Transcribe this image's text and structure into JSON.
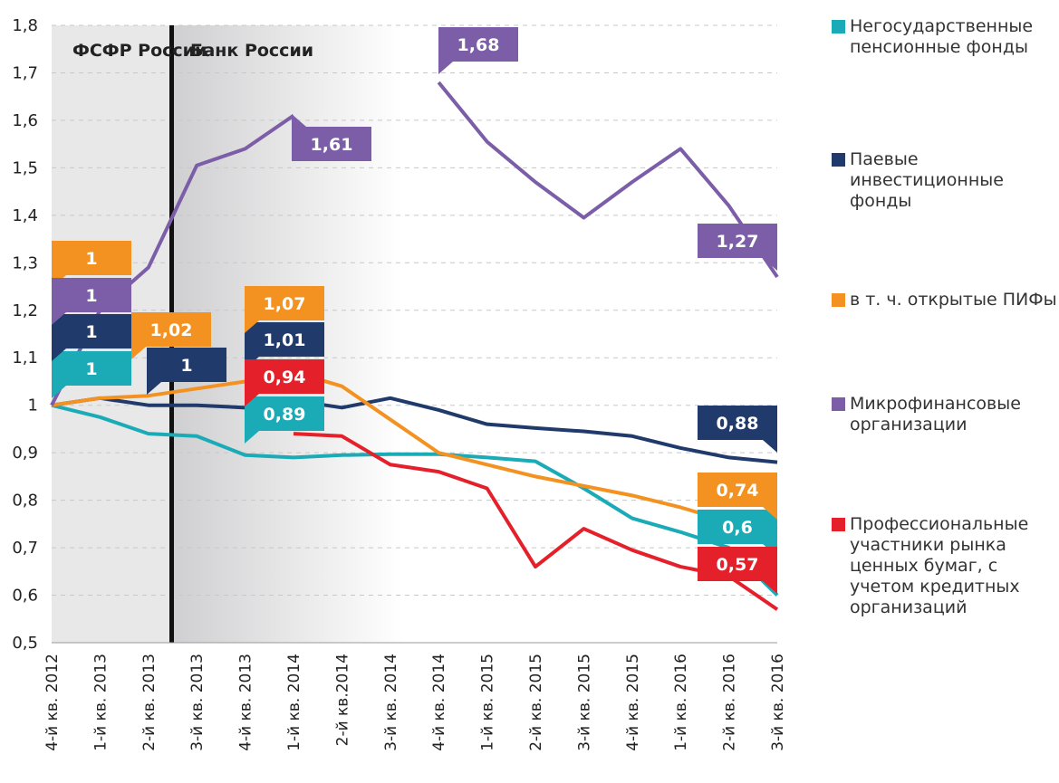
{
  "chart_data": {
    "type": "line",
    "annotations": [
      "ФСФР России",
      "Банк России"
    ],
    "categories": [
      "4-й кв. 2012",
      "1-й кв. 2013",
      "2-й кв. 2013",
      "3-й кв. 2013",
      "4-й кв. 2013",
      "1-й кв. 2014",
      "2-й кв.2014",
      "3-й кв. 2014",
      "4-й кв. 2014",
      "1-й кв. 2015",
      "2-й кв. 2015",
      "3-й кв. 2015",
      "4-й кв. 2015",
      "1-й кв. 2016",
      "2-й кв. 2016",
      "3-й кв. 2016"
    ],
    "series": [
      {
        "name": "Негосударственные пенсионные фонды",
        "color": "#1aabb7",
        "values": [
          1.0,
          0.975,
          0.94,
          0.935,
          0.895,
          0.89,
          0.895,
          0.897,
          0.897,
          0.89,
          0.882,
          0.825,
          0.762,
          0.733,
          0.7,
          0.6
        ],
        "value_labels": [
          "1",
          null,
          null,
          null,
          null,
          "0,89",
          null,
          null,
          null,
          null,
          null,
          null,
          null,
          null,
          null,
          "0,6"
        ]
      },
      {
        "name": "Паевые инвестиционные фонды",
        "color": "#1f3a6b",
        "values": [
          1.0,
          1.015,
          1.0,
          1.0,
          0.995,
          1.01,
          0.995,
          1.015,
          0.99,
          0.96,
          0.952,
          0.945,
          0.935,
          0.91,
          0.89,
          0.88
        ],
        "value_labels": [
          "1",
          null,
          "1",
          null,
          null,
          "1,01",
          null,
          null,
          null,
          null,
          null,
          null,
          null,
          null,
          null,
          "0,88"
        ]
      },
      {
        "name": "в т. ч. открытые ПИФы",
        "color": "#f39220",
        "values": [
          1.0,
          1.015,
          1.02,
          1.035,
          1.05,
          1.07,
          1.04,
          0.97,
          0.9,
          0.875,
          0.85,
          0.83,
          0.81,
          0.785,
          0.755,
          0.74
        ],
        "value_labels": [
          "1",
          null,
          "1,02",
          null,
          null,
          "1,07",
          null,
          null,
          null,
          null,
          null,
          null,
          null,
          null,
          null,
          "0,74"
        ]
      },
      {
        "name": "Микрофинансовые организации",
        "color": "#7b5ea7",
        "values": [
          1.0,
          1.2,
          1.29,
          1.505,
          1.54,
          1.61,
          null,
          null,
          1.68,
          1.555,
          1.47,
          1.395,
          1.47,
          1.54,
          1.42,
          1.27
        ],
        "value_labels": [
          "1",
          null,
          null,
          null,
          null,
          "1,61",
          null,
          null,
          "1,68",
          null,
          null,
          null,
          null,
          null,
          null,
          "1,27"
        ]
      },
      {
        "name": "Профессиональные участники рынка ценных бумаг, с учетом кредитных организаций",
        "color": "#e4202a",
        "values": [
          null,
          null,
          null,
          null,
          null,
          0.94,
          0.935,
          0.875,
          0.86,
          0.825,
          0.66,
          0.74,
          0.695,
          0.66,
          0.64,
          0.57
        ],
        "value_labels": [
          null,
          null,
          null,
          null,
          null,
          "0,94",
          null,
          null,
          null,
          null,
          null,
          null,
          null,
          null,
          null,
          "0,57"
        ]
      }
    ],
    "ylim": [
      0.5,
      1.8
    ],
    "yticks": [
      {
        "value": 0.5,
        "label": "0,5"
      },
      {
        "value": 0.6,
        "label": "0,6"
      },
      {
        "value": 0.7,
        "label": "0,7"
      },
      {
        "value": 0.8,
        "label": "0,8"
      },
      {
        "value": 0.9,
        "label": "0,9"
      },
      1,
      {
        "value": 1.1,
        "label": "1,1"
      },
      {
        "value": 1.2,
        "label": "1,2"
      },
      {
        "value": 1.3,
        "label": "1,3"
      },
      {
        "value": 1.4,
        "label": "1,4"
      },
      {
        "value": 1.5,
        "label": "1,5"
      },
      {
        "value": 1.6,
        "label": "1,6"
      },
      {
        "value": 1.7,
        "label": "1,7"
      },
      {
        "value": 1.8,
        "label": "1,8"
      }
    ],
    "grid": true
  }
}
